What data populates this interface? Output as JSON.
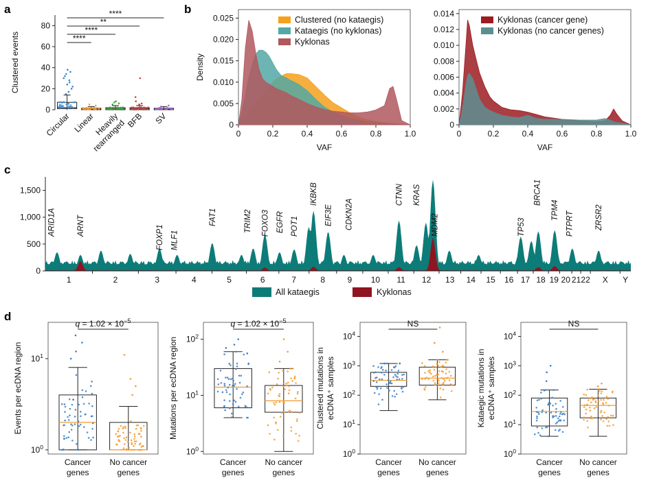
{
  "colors": {
    "clustered": "#f5a11c",
    "kataegis": "#54a8a5",
    "kyklonas": "#b0585e",
    "cancer_gene": "#9c1c22",
    "no_cancer_gene": "#5c8e90",
    "all_kataegis": "#0d7c78",
    "kyklonas_c": "#8f1520",
    "box_blue": "#3b7fc4",
    "box_orange": "#f59a30",
    "circular": "#3d86c6",
    "linear": "#f59a30",
    "heavily": "#3da33d",
    "bfb": "#d0403d",
    "sv": "#9c6cc0"
  },
  "chart_data": [
    {
      "id": "a",
      "panel_label": "a",
      "type": "box",
      "ylabel": "Clustered events",
      "ylim": [
        0,
        90
      ],
      "yticks": [
        "0",
        "20",
        "40",
        "60",
        "80"
      ],
      "categories": [
        "Circular",
        "Linear",
        "Heavily rearranged",
        "BFB",
        "SV"
      ],
      "category_lines": [
        [
          "Circular"
        ],
        [
          "Linear"
        ],
        [
          "Heavily",
          "rearranged"
        ],
        [
          "BFB"
        ],
        [
          "SV"
        ]
      ],
      "boxes": [
        {
          "q1": 1,
          "median": 2,
          "q3": 7,
          "whisker_low": 0,
          "whisker_high": 14
        },
        {
          "q1": 0,
          "median": 0.5,
          "q3": 1.5,
          "whisker_low": 0,
          "whisker_high": 3
        },
        {
          "q1": 0,
          "median": 1,
          "q3": 2,
          "whisker_low": 0,
          "whisker_high": 4
        },
        {
          "q1": 0,
          "median": 1,
          "q3": 2,
          "whisker_low": 0,
          "whisker_high": 4
        },
        {
          "q1": 0,
          "median": 0.5,
          "q3": 1.5,
          "whisker_low": 0,
          "whisker_high": 3
        }
      ],
      "outliers": [
        [
          15,
          17,
          20,
          22,
          24,
          26,
          28,
          30,
          32,
          34,
          36,
          38
        ],
        [
          4,
          5
        ],
        [
          5,
          6,
          7,
          8
        ],
        [
          5,
          6,
          8,
          12,
          30
        ],
        [
          3,
          4
        ]
      ],
      "significance": [
        {
          "from": 0,
          "to": 1,
          "label": "****"
        },
        {
          "from": 0,
          "to": 2,
          "label": "****"
        },
        {
          "from": 0,
          "to": 3,
          "label": "**"
        },
        {
          "from": 0,
          "to": 4,
          "label": "****"
        }
      ]
    },
    {
      "id": "b1",
      "panel_label": "b",
      "type": "area",
      "xlabel": "VAF",
      "ylabel": "Density",
      "xlim": [
        0,
        1
      ],
      "ylim": [
        0,
        0.027
      ],
      "xticks": [
        "0",
        "0.2",
        "0.4",
        "0.6",
        "0.8",
        "1.0"
      ],
      "yticks": [
        "0",
        "0.005",
        "0.010",
        "0.015",
        "0.020",
        "0.025"
      ],
      "legend": [
        "Clustered (no kataegis)",
        "Kataegis (no kyklonas)",
        "Kyklonas"
      ],
      "x": [
        0,
        0.02,
        0.04,
        0.06,
        0.08,
        0.1,
        0.12,
        0.14,
        0.16,
        0.18,
        0.2,
        0.22,
        0.25,
        0.28,
        0.3,
        0.35,
        0.4,
        0.45,
        0.5,
        0.55,
        0.6,
        0.65,
        0.7,
        0.75,
        0.8,
        0.85,
        0.88,
        0.9,
        0.92,
        0.95,
        1.0
      ],
      "series": [
        {
          "name": "Clustered (no kataegis)",
          "values": [
            0,
            0.001,
            0.002,
            0.003,
            0.004,
            0.005,
            0.006,
            0.007,
            0.008,
            0.009,
            0.01,
            0.0108,
            0.0115,
            0.012,
            0.012,
            0.0118,
            0.011,
            0.009,
            0.007,
            0.0052,
            0.004,
            0.0028,
            0.0018,
            0.0012,
            0.0008,
            0.0005,
            0.0004,
            0.0003,
            0.0002,
            0.0001,
            0
          ]
        },
        {
          "name": "Kataegis (no kyklonas)",
          "values": [
            0,
            0.003,
            0.007,
            0.011,
            0.014,
            0.0165,
            0.0175,
            0.0175,
            0.017,
            0.016,
            0.0145,
            0.013,
            0.0115,
            0.011,
            0.0105,
            0.0095,
            0.008,
            0.006,
            0.0042,
            0.003,
            0.0022,
            0.0016,
            0.0011,
            0.0007,
            0.0005,
            0.0003,
            0.0002,
            0.0002,
            0.0001,
            0.0001,
            0
          ]
        },
        {
          "name": "Kyklonas",
          "values": [
            0,
            0.006,
            0.018,
            0.0245,
            0.022,
            0.017,
            0.013,
            0.0108,
            0.01,
            0.0095,
            0.009,
            0.0085,
            0.008,
            0.0075,
            0.007,
            0.006,
            0.005,
            0.0042,
            0.0036,
            0.0032,
            0.003,
            0.0028,
            0.0028,
            0.003,
            0.0035,
            0.0045,
            0.0085,
            0.009,
            0.006,
            0.001,
            0
          ]
        }
      ]
    },
    {
      "id": "b2",
      "panel_label": "",
      "type": "area",
      "xlabel": "VAF",
      "ylabel": "",
      "xlim": [
        0,
        1
      ],
      "ylim": [
        0,
        0.0145
      ],
      "xticks": [
        "0",
        "0.2",
        "0.4",
        "0.6",
        "0.8",
        "1.0"
      ],
      "yticks": [
        "0",
        "0.002",
        "0.004",
        "0.006",
        "0.008",
        "0.010",
        "0.012",
        "0.014"
      ],
      "legend": [
        "Kyklonas (cancer gene)",
        "Kyklonas (no cancer genes)"
      ],
      "x": [
        0,
        0.02,
        0.04,
        0.05,
        0.06,
        0.08,
        0.1,
        0.12,
        0.15,
        0.18,
        0.2,
        0.25,
        0.3,
        0.35,
        0.4,
        0.45,
        0.5,
        0.6,
        0.7,
        0.8,
        0.85,
        0.88,
        0.9,
        0.92,
        0.95,
        1.0
      ],
      "series": [
        {
          "name": "Kyklonas (cancer gene)",
          "values": [
            0,
            0.004,
            0.01,
            0.0132,
            0.0125,
            0.01,
            0.0082,
            0.0065,
            0.0048,
            0.0035,
            0.003,
            0.0022,
            0.0019,
            0.0018,
            0.0016,
            0.0013,
            0.001,
            0.0007,
            0.0005,
            0.0004,
            0.0005,
            0.0012,
            0.002,
            0.0013,
            0.0005,
            0
          ]
        },
        {
          "name": "Kyklonas (no cancer genes)",
          "values": [
            0,
            0.002,
            0.005,
            0.0062,
            0.0065,
            0.0058,
            0.0045,
            0.0032,
            0.0022,
            0.0018,
            0.0016,
            0.0012,
            0.001,
            0.0009,
            0.0012,
            0.0008,
            0.0007,
            0.0007,
            0.0006,
            0.0006,
            0.0008,
            0.0006,
            0.0004,
            0.0003,
            0.0002,
            0
          ]
        }
      ]
    },
    {
      "id": "c",
      "panel_label": "c",
      "type": "area",
      "ylim": [
        0,
        1750
      ],
      "yticks": [
        "0",
        "500",
        "1,000",
        "1,500"
      ],
      "legend": [
        "All kataegis",
        "Kyklonas"
      ],
      "chromosomes": [
        "1",
        "2",
        "3",
        "4",
        "5",
        "6",
        "7",
        "8",
        "9",
        "10",
        "11",
        "12",
        "13",
        "14",
        "15",
        "16",
        "17",
        "18",
        "19",
        "20",
        "21",
        "22",
        "X",
        "Y"
      ],
      "chrom_lengths": [
        248,
        242,
        198,
        190,
        181,
        171,
        159,
        145,
        138,
        134,
        135,
        133,
        114,
        107,
        102,
        90,
        83,
        80,
        59,
        64,
        47,
        51,
        156,
        57
      ],
      "genes": [
        {
          "name": "ARID1A",
          "pos": 0.01
        },
        {
          "name": "ARNT",
          "pos": 0.06
        },
        {
          "name": "FOXP1",
          "pos": 0.195
        },
        {
          "name": "MLF1",
          "pos": 0.22
        },
        {
          "name": "FAT1",
          "pos": 0.285
        },
        {
          "name": "TRIM2",
          "pos": 0.345
        },
        {
          "name": "FOXO3",
          "pos": 0.375
        },
        {
          "name": "EGFR",
          "pos": 0.4
        },
        {
          "name": "POT1",
          "pos": 0.425
        },
        {
          "name": "IKBKB",
          "pos": 0.458
        },
        {
          "name": "EIF3E",
          "pos": 0.483
        },
        {
          "name": "CDKN2A",
          "pos": 0.518
        },
        {
          "name": "CTNN",
          "pos": 0.604
        },
        {
          "name": "KRAS",
          "pos": 0.634
        },
        {
          "name": "MDM2",
          "pos": 0.665
        },
        {
          "name": "TP53",
          "pos": 0.812
        },
        {
          "name": "BRCA1",
          "pos": 0.84
        },
        {
          "name": "TPM4",
          "pos": 0.87
        },
        {
          "name": "PTPRT",
          "pos": 0.895
        },
        {
          "name": "ZRSR2",
          "pos": 0.945
        }
      ],
      "kataegis_peaks": [
        {
          "pos": 0.02,
          "value": 350
        },
        {
          "pos": 0.06,
          "value": 300
        },
        {
          "pos": 0.095,
          "value": 380
        },
        {
          "pos": 0.145,
          "value": 320
        },
        {
          "pos": 0.195,
          "value": 420
        },
        {
          "pos": 0.225,
          "value": 300
        },
        {
          "pos": 0.285,
          "value": 520
        },
        {
          "pos": 0.335,
          "value": 300
        },
        {
          "pos": 0.355,
          "value": 420
        },
        {
          "pos": 0.375,
          "value": 680
        },
        {
          "pos": 0.4,
          "value": 350
        },
        {
          "pos": 0.425,
          "value": 400
        },
        {
          "pos": 0.45,
          "value": 820
        },
        {
          "pos": 0.458,
          "value": 1120
        },
        {
          "pos": 0.483,
          "value": 730
        },
        {
          "pos": 0.51,
          "value": 300
        },
        {
          "pos": 0.56,
          "value": 300
        },
        {
          "pos": 0.604,
          "value": 940
        },
        {
          "pos": 0.634,
          "value": 480
        },
        {
          "pos": 0.65,
          "value": 900
        },
        {
          "pos": 0.662,
          "value": 1700
        },
        {
          "pos": 0.69,
          "value": 380
        },
        {
          "pos": 0.74,
          "value": 300
        },
        {
          "pos": 0.812,
          "value": 640
        },
        {
          "pos": 0.83,
          "value": 560
        },
        {
          "pos": 0.842,
          "value": 740
        },
        {
          "pos": 0.87,
          "value": 760
        },
        {
          "pos": 0.9,
          "value": 420
        },
        {
          "pos": 0.945,
          "value": 380
        }
      ],
      "kyklonas_peaks": [
        {
          "pos": 0.06,
          "value": 180
        },
        {
          "pos": 0.375,
          "value": 60
        },
        {
          "pos": 0.458,
          "value": 80
        },
        {
          "pos": 0.604,
          "value": 70
        },
        {
          "pos": 0.662,
          "value": 620
        },
        {
          "pos": 0.842,
          "value": 70
        },
        {
          "pos": 0.87,
          "value": 90
        }
      ]
    },
    {
      "id": "d1",
      "panel_label": "d",
      "type": "box",
      "ylabel": "Events per ecDNA region",
      "yscale": "log",
      "ylim": [
        0.9,
        25
      ],
      "yticks": [
        {
          "v": 1,
          "t": "10",
          "e": "0"
        },
        {
          "v": 10,
          "t": "10",
          "e": "1"
        }
      ],
      "categories": [
        "Cancer genes",
        "No cancer genes"
      ],
      "category_lines": [
        [
          "Cancer",
          "genes"
        ],
        [
          "No cancer",
          "genes"
        ]
      ],
      "annotation": {
        "q": "1.02",
        "e": "−5"
      },
      "boxes": [
        {
          "q1": 1,
          "median": 2,
          "q3": 4,
          "whisker_low": 1,
          "whisker_high": 8
        },
        {
          "q1": 1,
          "median": 1,
          "q3": 2,
          "whisker_low": 1,
          "whisker_high": 3
        }
      ],
      "outliers": [
        [
          10,
          12,
          15,
          18
        ],
        [
          4,
          5,
          6,
          11
        ]
      ],
      "median_color": "#f59a30"
    },
    {
      "id": "d2",
      "panel_label": "",
      "type": "box",
      "ylabel": "Mutations per ecDNA region",
      "yscale": "log",
      "ylim": [
        0.9,
        200
      ],
      "yticks": [
        {
          "v": 1,
          "t": "10",
          "e": "0"
        },
        {
          "v": 10,
          "t": "10",
          "e": "1"
        },
        {
          "v": 100,
          "t": "10",
          "e": "2"
        }
      ],
      "categories": [
        "Cancer genes",
        "No cancer genes"
      ],
      "category_lines": [
        [
          "Cancer",
          "genes"
        ],
        [
          "No cancer",
          "genes"
        ]
      ],
      "annotation": {
        "q": "1.02",
        "e": "−5"
      },
      "boxes": [
        {
          "q1": 6,
          "median": 14,
          "q3": 30,
          "whisker_low": 4,
          "whisker_high": 60
        },
        {
          "q1": 5,
          "median": 8,
          "q3": 15,
          "whisker_low": 1,
          "whisker_high": 30
        }
      ],
      "outliers": [
        [
          70,
          80,
          100
        ],
        [
          40,
          60,
          100
        ]
      ],
      "median_color": "#f59a30"
    },
    {
      "id": "d3",
      "panel_label": "",
      "type": "box",
      "ylabel": "Clustered mutations in\necDNA⁺ samples",
      "ylabel_lines": [
        "Clustered mutations in",
        "ecDNA⁺ samples"
      ],
      "yscale": "log",
      "ylim": [
        1,
        30000
      ],
      "yticks": [
        {
          "v": 1,
          "t": "10",
          "e": "0"
        },
        {
          "v": 10,
          "t": "10",
          "e": "1"
        },
        {
          "v": 100,
          "t": "10",
          "e": "2"
        },
        {
          "v": 1000,
          "t": "10",
          "e": "3"
        },
        {
          "v": 10000,
          "t": "10",
          "e": "4"
        }
      ],
      "categories": [
        "Cancer genes",
        "No cancer genes"
      ],
      "category_lines": [
        [
          "Cancer",
          "genes"
        ],
        [
          "No cancer",
          "genes"
        ]
      ],
      "annotation": {
        "ns": "NS"
      },
      "boxes": [
        {
          "q1": 200,
          "median": 320,
          "q3": 600,
          "whisker_low": 30,
          "whisker_high": 1200
        },
        {
          "q1": 220,
          "median": 380,
          "q3": 900,
          "whisker_low": 70,
          "whisker_high": 1600
        }
      ],
      "outliers": [
        [],
        [
          3000,
          6000,
          20000
        ]
      ],
      "median_color": "#f59a30"
    },
    {
      "id": "d4",
      "panel_label": "",
      "type": "box",
      "ylabel": "Kataegic mutations in\necDNA⁺ samples",
      "ylabel_lines": [
        "Kataegic mutations in",
        "ecDNA⁺ samples"
      ],
      "yscale": "log",
      "ylim": [
        1,
        30000
      ],
      "yticks": [
        {
          "v": 1,
          "t": "10",
          "e": "0"
        },
        {
          "v": 10,
          "t": "10",
          "e": "1"
        },
        {
          "v": 100,
          "t": "10",
          "e": "2"
        },
        {
          "v": 1000,
          "t": "10",
          "e": "3"
        },
        {
          "v": 10000,
          "t": "10",
          "e": "4"
        }
      ],
      "categories": [
        "Cancer genes",
        "No cancer genes"
      ],
      "category_lines": [
        [
          "Cancer",
          "genes"
        ],
        [
          "No cancer",
          "genes"
        ]
      ],
      "annotation": {
        "ns": "NS"
      },
      "boxes": [
        {
          "q1": 9,
          "median": 28,
          "q3": 80,
          "whisker_low": 4,
          "whisker_high": 150
        },
        {
          "q1": 17,
          "median": 45,
          "q3": 80,
          "whisker_low": 4,
          "whisker_high": 160
        }
      ],
      "outliers": [
        [
          300,
          600,
          1000
        ],
        [
          200,
          250
        ]
      ],
      "median_color": "#f59a30"
    }
  ]
}
